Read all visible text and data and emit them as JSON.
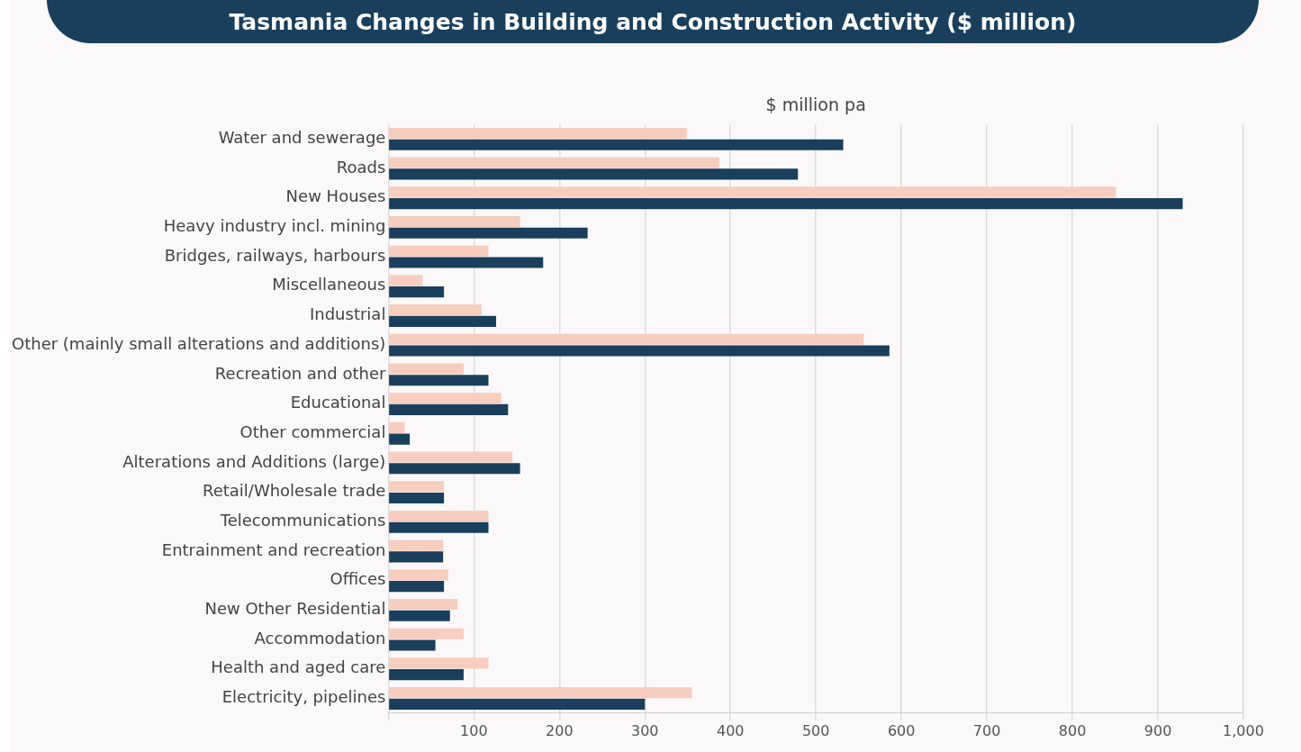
{
  "chart_data": {
    "type": "bar",
    "orientation": "horizontal",
    "title": "Tasmania Changes in Building and Construction Activity ($ million)",
    "xlabel": "$ million pa",
    "categories": [
      "Water and sewerage",
      "Roads",
      "New Houses",
      "Heavy industry incl. mining",
      "Bridges, railways, harbours",
      "Miscellaneous",
      "Industrial",
      "Other (mainly small alterations and additions)",
      "Recreation and other",
      "Educational",
      "Other commercial",
      "Alterations and Additions (large)",
      "Retail/Wholesale trade",
      "Telecommunications",
      "Entrainment and recreation",
      "Offices",
      "New Other Residential",
      "Accommodation",
      "Health and aged care",
      "Electricity, pipelines"
    ],
    "series": [
      {
        "color": "#f7cdbf",
        "values": [
          349,
          387,
          851,
          154,
          117,
          40,
          109,
          556,
          88,
          132,
          19,
          145,
          65,
          117,
          64,
          70,
          81,
          88,
          117,
          355
        ]
      },
      {
        "color": "#1a3f5c",
        "values": [
          532,
          479,
          929,
          233,
          181,
          65,
          126,
          586,
          117,
          140,
          25,
          154,
          65,
          117,
          64,
          65,
          72,
          55,
          88,
          300
        ]
      }
    ],
    "xlim": [
      0,
      1000
    ],
    "xticks": [
      {
        "value": 0,
        "label": null
      },
      100,
      200,
      300,
      400,
      500,
      600,
      700,
      800,
      900,
      {
        "value": 1000,
        "label": "1,000"
      }
    ],
    "grid": "x",
    "legend": false
  }
}
